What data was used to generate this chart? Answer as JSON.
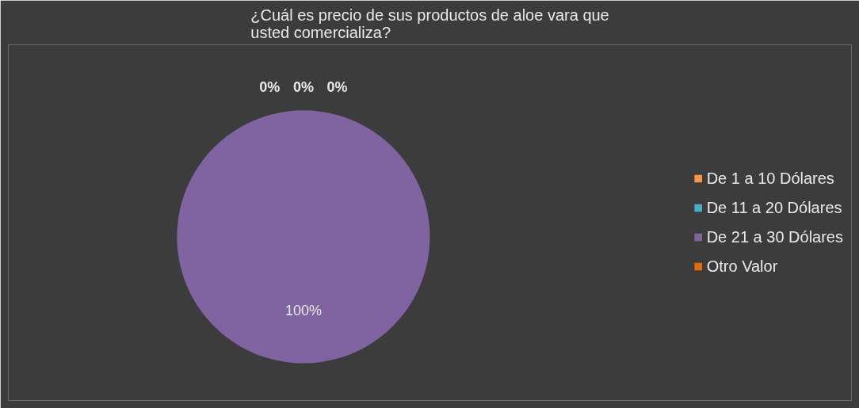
{
  "chart_data": {
    "type": "pie",
    "title": "¿Cuál es precio de sus productos de aloe vara que usted comercializa?",
    "categories": [
      "De 1 a 10 Dólares",
      "De 11 a 20 Dólares",
      "De 21 a 30 Dólares",
      "Otro Valor"
    ],
    "values": [
      0,
      0,
      100,
      0
    ],
    "value_labels": [
      "0%",
      "0%",
      "100%",
      "0%"
    ],
    "colors": [
      "#f79646",
      "#4bacc6",
      "#8064a2",
      "#e46c0a"
    ],
    "legend": "right"
  }
}
